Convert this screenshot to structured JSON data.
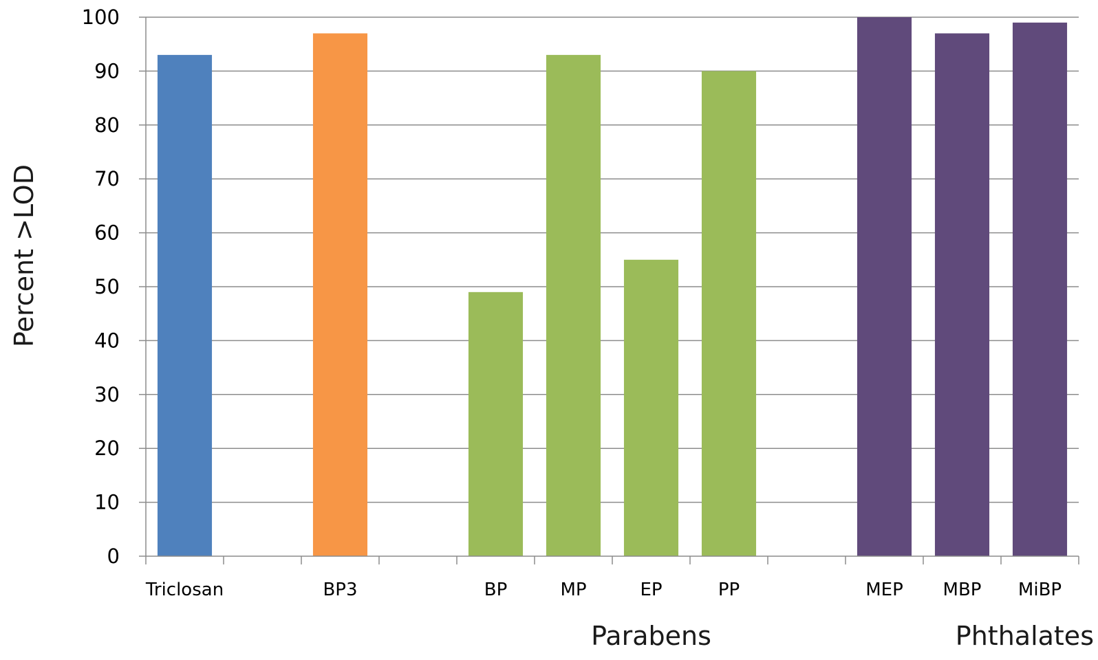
{
  "chart_data": {
    "type": "bar",
    "title": "",
    "xlabel": "",
    "ylabel": "Percent >LOD",
    "ylim": [
      0,
      100
    ],
    "yticks": [
      0,
      10,
      20,
      30,
      40,
      50,
      60,
      70,
      80,
      90,
      100
    ],
    "grid": true,
    "legend": "none",
    "categories": [
      "Triclosan",
      "",
      "BP3",
      "",
      "BP",
      "MP",
      "EP",
      "PP",
      "",
      "MEP",
      "MBP",
      "MiBP"
    ],
    "values": [
      93,
      null,
      97,
      null,
      49,
      93,
      55,
      90,
      null,
      100,
      97,
      99
    ],
    "colors": [
      "#4f81bd",
      null,
      "#f79646",
      null,
      "#9bbb59",
      "#9bbb59",
      "#9bbb59",
      "#9bbb59",
      null,
      "#604a7b",
      "#604a7b",
      "#604a7b"
    ],
    "groups": [
      {
        "label": "Parabens",
        "center_category": "EP"
      },
      {
        "label": "Phthalates",
        "center_category": "MiBP"
      }
    ]
  }
}
